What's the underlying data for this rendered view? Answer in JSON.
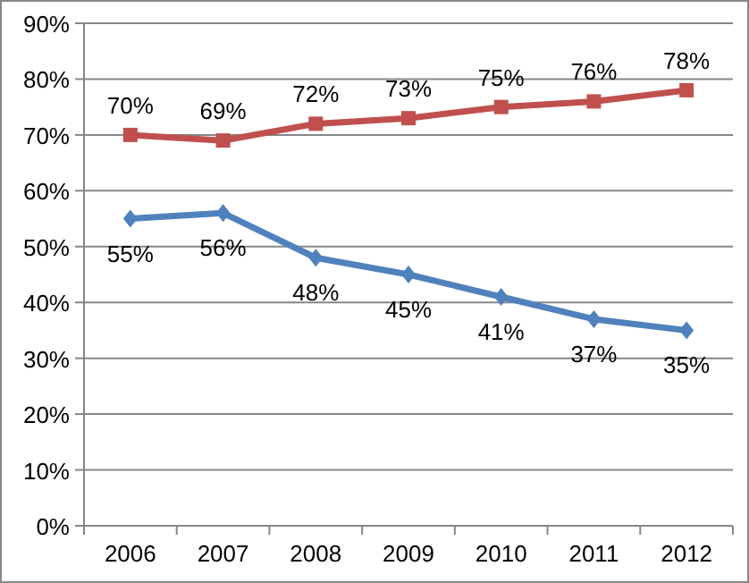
{
  "chart_data": {
    "type": "line",
    "categories": [
      "2006",
      "2007",
      "2008",
      "2009",
      "2010",
      "2011",
      "2012"
    ],
    "series": [
      {
        "color": "#c0504d",
        "marker": "square",
        "values": [
          70,
          69,
          72,
          73,
          75,
          76,
          78
        ],
        "value_labels": [
          "70%",
          "69%",
          "72%",
          "73%",
          "75%",
          "76%",
          "78%"
        ]
      },
      {
        "color": "#4f81bd",
        "marker": "diamond",
        "values": [
          55,
          56,
          48,
          45,
          41,
          37,
          35
        ],
        "value_labels": [
          "55%",
          "56%",
          "48%",
          "45%",
          "41%",
          "37%",
          "35%"
        ]
      }
    ],
    "ylim": [
      0,
      90
    ],
    "yticks": [
      {
        "value": 0,
        "label": "0%"
      },
      {
        "value": 10,
        "label": "10%"
      },
      {
        "value": 20,
        "label": "20%"
      },
      {
        "value": 30,
        "label": "30%"
      },
      {
        "value": 40,
        "label": "40%"
      },
      {
        "value": 50,
        "label": "50%"
      },
      {
        "value": 60,
        "label": "60%"
      },
      {
        "value": 70,
        "label": "70%"
      },
      {
        "value": 80,
        "label": "80%"
      },
      {
        "value": 90,
        "label": "90%"
      }
    ],
    "grid": "y"
  }
}
